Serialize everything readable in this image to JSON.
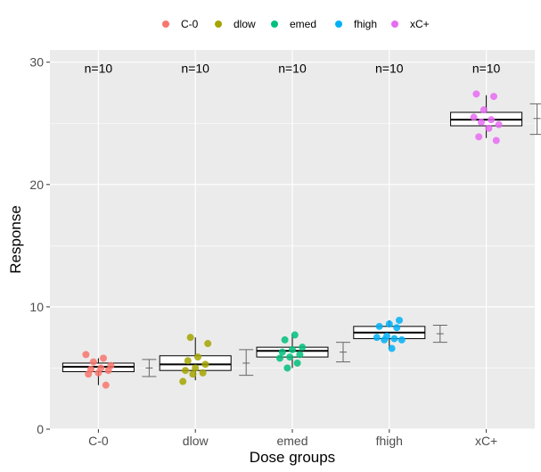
{
  "chart_data": {
    "type": "boxplot",
    "xlabel": "Dose groups",
    "ylabel": "Response",
    "ylim": [
      0,
      31
    ],
    "yticks": [
      0,
      10,
      20,
      30
    ],
    "grid": true,
    "legend_position": "top",
    "categories": [
      "C-0",
      "dlow",
      "emed",
      "fhigh",
      "xC+"
    ],
    "colors": [
      "#F8766D",
      "#A3A500",
      "#00BF7D",
      "#00B0F6",
      "#E76BF3"
    ],
    "n_labels": [
      "n=10",
      "n=10",
      "n=10",
      "n=10",
      "n=10"
    ],
    "groups": [
      {
        "name": "C-0",
        "box": {
          "whisker_low": 3.6,
          "q1": 4.7,
          "median": 5.1,
          "q3": 5.4,
          "whisker_high": 5.8
        },
        "mean_ci": {
          "low": 4.3,
          "mean": 5.0,
          "high": 5.7
        },
        "points": [
          6.1,
          5.8,
          5.5,
          5.2,
          5.0,
          4.9,
          4.8,
          4.6,
          4.5,
          3.6
        ]
      },
      {
        "name": "dlow",
        "box": {
          "whisker_low": 4.0,
          "q1": 4.8,
          "median": 5.3,
          "q3": 6.0,
          "whisker_high": 7.5
        },
        "mean_ci": {
          "low": 4.4,
          "mean": 5.4,
          "high": 6.5
        },
        "points": [
          7.5,
          7.0,
          5.9,
          5.6,
          5.3,
          5.0,
          4.8,
          4.6,
          4.5,
          3.9
        ]
      },
      {
        "name": "emed",
        "box": {
          "whisker_low": 5.0,
          "q1": 5.9,
          "median": 6.4,
          "q3": 6.7,
          "whisker_high": 7.7
        },
        "mean_ci": {
          "low": 5.5,
          "mean": 6.3,
          "high": 7.1
        },
        "points": [
          7.7,
          7.3,
          6.7,
          6.5,
          6.3,
          6.1,
          5.9,
          5.8,
          5.4,
          5.0
        ]
      },
      {
        "name": "fhigh",
        "box": {
          "whisker_low": 6.6,
          "q1": 7.4,
          "median": 7.9,
          "q3": 8.4,
          "whisker_high": 8.9
        },
        "mean_ci": {
          "low": 7.1,
          "mean": 7.8,
          "high": 8.5
        },
        "points": [
          8.9,
          8.6,
          8.4,
          8.3,
          7.6,
          7.5,
          7.4,
          7.3,
          7.3,
          6.6
        ]
      },
      {
        "name": "xC+",
        "box": {
          "whisker_low": 23.8,
          "q1": 24.8,
          "median": 25.3,
          "q3": 25.9,
          "whisker_high": 27.3
        },
        "mean_ci": {
          "low": 24.1,
          "mean": 25.4,
          "high": 26.6
        },
        "points": [
          27.4,
          27.2,
          26.1,
          25.5,
          25.3,
          25.1,
          24.9,
          24.6,
          23.9,
          23.6
        ]
      }
    ]
  }
}
